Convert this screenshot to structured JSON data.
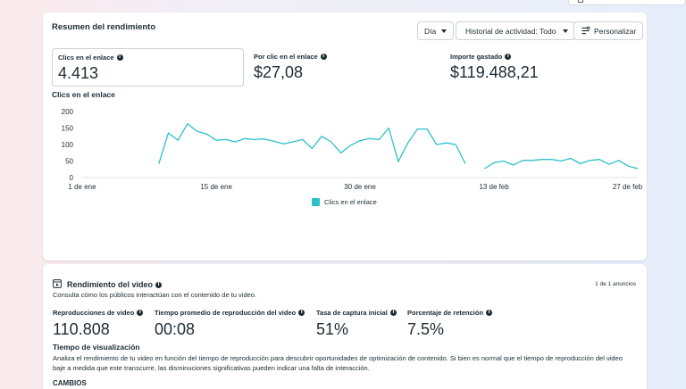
{
  "performance": {
    "title": "Resumen del rendimiento",
    "controls": {
      "granularity": "Día",
      "history": "Historial de actividad: Todo",
      "customize": "Personalizar"
    },
    "metrics": [
      {
        "label": "Clics en el enlace",
        "value": "4.413"
      },
      {
        "label": "Por clic en el enlace",
        "value": "$27,08"
      },
      {
        "label": "Importe gastado",
        "value": "$119.488,21"
      }
    ]
  },
  "chart_data": {
    "type": "line",
    "title": "Clics en el enlace",
    "xlabel": "",
    "ylabel": "",
    "ylim": [
      0,
      200
    ],
    "yticks": [
      0,
      50,
      100,
      150,
      200
    ],
    "xticks": [
      {
        "label": "1 de ene",
        "day": 0
      },
      {
        "label": "15 de ene",
        "day": 14
      },
      {
        "label": "30 de ene",
        "day": 29
      },
      {
        "label": "13 de feb",
        "day": 43
      },
      {
        "label": "27 de feb",
        "day": 57
      }
    ],
    "grid": false,
    "legend": "bottom-center",
    "color": "#2dc0cb",
    "series": [
      {
        "name": "Clics en el enlace",
        "segments": [
          [
            [
              8,
              42
            ],
            [
              9,
              135
            ],
            [
              10,
              113
            ],
            [
              11,
              163
            ],
            [
              12,
              140
            ],
            [
              13,
              132
            ],
            [
              14,
              113
            ],
            [
              15,
              115
            ],
            [
              16,
              108
            ],
            [
              17,
              118
            ],
            [
              18,
              115
            ],
            [
              19,
              117
            ],
            [
              20,
              110
            ],
            [
              21,
              102
            ],
            [
              22,
              108
            ],
            [
              23,
              115
            ],
            [
              24,
              88
            ],
            [
              25,
              125
            ],
            [
              26,
              108
            ],
            [
              27,
              75
            ],
            [
              28,
              97
            ],
            [
              29,
              112
            ],
            [
              30,
              118
            ],
            [
              31,
              115
            ],
            [
              32,
              150
            ],
            [
              33,
              48
            ],
            [
              34,
              105
            ],
            [
              35,
              147
            ],
            [
              36,
              147
            ],
            [
              37,
              100
            ],
            [
              38,
              105
            ],
            [
              39,
              100
            ],
            [
              40,
              42
            ]
          ],
          [
            [
              42,
              27
            ],
            [
              43,
              45
            ],
            [
              44,
              50
            ],
            [
              45,
              38
            ],
            [
              46,
              52
            ],
            [
              47,
              52
            ],
            [
              48,
              55
            ],
            [
              49,
              55
            ],
            [
              50,
              50
            ],
            [
              51,
              58
            ],
            [
              52,
              42
            ],
            [
              53,
              52
            ],
            [
              54,
              55
            ],
            [
              55,
              40
            ],
            [
              56,
              52
            ],
            [
              57,
              35
            ],
            [
              58,
              27
            ]
          ]
        ]
      }
    ]
  },
  "video": {
    "title": "Rendimiento del video",
    "subtitle": "Consulta cómo los públicos interactúan con el contenido de tu video.",
    "count": "1 de 1 anuncios",
    "metrics": [
      {
        "label": "Reproducciones de video",
        "value": "110.808"
      },
      {
        "label": "Tiempo promedio de reproducción del video",
        "value": "00:08"
      },
      {
        "label": "Tasa de captura inicial",
        "value": "51%"
      },
      {
        "label": "Porcentaje de retención",
        "value": "7.5%"
      }
    ],
    "watch_time": {
      "title": "Tiempo de visualización",
      "description": "Analiza el rendimiento de tu video en función del tiempo de reproducción para descubrir oportunidades de optimización de contenido. Si bien es normal que el tiempo de reproducción del video baje a medida que este transcurre, las disminuciones significativas pueden indicar una falta de interacción."
    },
    "changes_label": "CAMBIOS"
  }
}
